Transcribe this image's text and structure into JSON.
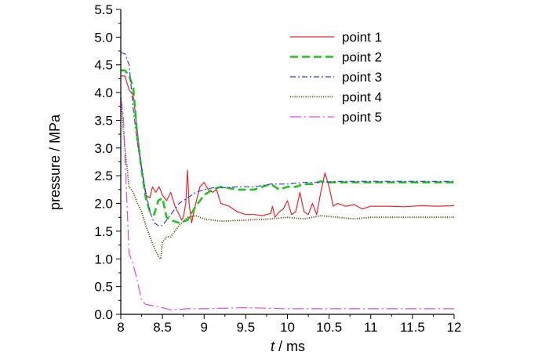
{
  "chart_data": {
    "type": "line",
    "title": "",
    "xlabel_italic": "t",
    "xlabel_rest": " / ms",
    "ylabel": "pressure / MPa",
    "xlim": [
      8,
      12
    ],
    "ylim": [
      0,
      5.5
    ],
    "xticks": [
      8,
      8.5,
      9,
      9.5,
      10,
      10.5,
      11,
      11.5,
      12
    ],
    "xtick_labels": [
      "8",
      "8.5",
      "9",
      "9.5",
      "10",
      "10.5",
      "11",
      "11.5",
      "12"
    ],
    "yticks": [
      0,
      0.5,
      1,
      1.5,
      2,
      2.5,
      3,
      3.5,
      4,
      4.5,
      5,
      5.5
    ],
    "ytick_labels": [
      "0.0",
      "0.5",
      "1.0",
      "1.5",
      "2.0",
      "2.5",
      "3.0",
      "3.5",
      "4.0",
      "4.5",
      "5.0",
      "5.5"
    ],
    "grid": false,
    "legend_position": "top-right",
    "series": [
      {
        "name": "point 1",
        "color": "#e8262a",
        "dash": "solid",
        "x": [
          8.0,
          8.05,
          8.1,
          8.15,
          8.2,
          8.25,
          8.3,
          8.35,
          8.38,
          8.42,
          8.46,
          8.5,
          8.55,
          8.6,
          8.65,
          8.7,
          8.73,
          8.75,
          8.78,
          8.8,
          8.82,
          8.85,
          8.9,
          8.95,
          9.0,
          9.05,
          9.1,
          9.15,
          9.2,
          9.3,
          9.4,
          9.5,
          9.6,
          9.7,
          9.8,
          9.82,
          9.85,
          9.9,
          9.95,
          10.0,
          10.05,
          10.1,
          10.15,
          10.2,
          10.25,
          10.3,
          10.35,
          10.4,
          10.45,
          10.5,
          10.55,
          10.6,
          10.7,
          10.8,
          10.9,
          11.0,
          11.2,
          11.4,
          11.6,
          11.8,
          12.0
        ],
        "y": [
          4.3,
          4.3,
          4.05,
          3.95,
          3.3,
          2.6,
          2.15,
          2.1,
          2.3,
          2.2,
          2.3,
          2.15,
          2.05,
          2.2,
          1.95,
          1.8,
          1.7,
          1.75,
          2.0,
          2.6,
          2.0,
          1.65,
          2.0,
          2.3,
          2.38,
          2.25,
          2.2,
          2.25,
          2.0,
          1.95,
          1.85,
          1.8,
          1.8,
          1.78,
          1.82,
          1.95,
          1.75,
          1.85,
          1.9,
          2.05,
          1.8,
          1.85,
          2.2,
          1.85,
          1.8,
          2.0,
          1.8,
          2.2,
          2.55,
          2.3,
          1.95,
          2.0,
          1.95,
          1.98,
          1.9,
          1.95,
          1.95,
          1.94,
          1.96,
          1.95,
          1.96
        ]
      },
      {
        "name": "point 2",
        "color": "#22c31e",
        "dash": "long-dash",
        "x": [
          8.0,
          8.05,
          8.1,
          8.15,
          8.2,
          8.25,
          8.3,
          8.35,
          8.4,
          8.45,
          8.5,
          8.55,
          8.6,
          8.7,
          8.8,
          8.9,
          9.0,
          9.1,
          9.2,
          9.4,
          9.6,
          9.7,
          9.8,
          9.9,
          10.0,
          10.1,
          10.2,
          10.3,
          10.4,
          10.5,
          10.6,
          10.8,
          11.0,
          11.5,
          12.0
        ],
        "y": [
          4.4,
          4.4,
          4.3,
          4.1,
          3.2,
          2.6,
          2.1,
          1.85,
          1.8,
          2.05,
          2.1,
          1.75,
          1.7,
          1.65,
          1.7,
          1.95,
          2.15,
          2.25,
          2.3,
          2.25,
          2.25,
          2.3,
          2.35,
          2.25,
          2.3,
          2.3,
          2.35,
          2.35,
          2.4,
          2.38,
          2.38,
          2.38,
          2.38,
          2.38,
          2.38
        ]
      },
      {
        "name": "point 3",
        "color": "#2f3ed6",
        "dash": "dash-dot",
        "x": [
          8.0,
          8.05,
          8.1,
          8.15,
          8.2,
          8.25,
          8.3,
          8.35,
          8.4,
          8.45,
          8.5,
          8.55,
          8.6,
          8.65,
          8.7,
          8.8,
          8.9,
          9.0,
          9.1,
          9.2,
          9.4,
          9.6,
          9.8,
          10.0,
          10.2,
          10.4,
          10.6,
          10.8,
          11.0,
          11.5,
          12.0
        ],
        "y": [
          4.72,
          4.7,
          4.5,
          3.7,
          3.1,
          2.65,
          2.2,
          1.85,
          1.65,
          1.6,
          1.6,
          1.7,
          1.8,
          1.9,
          2.0,
          2.1,
          2.2,
          2.25,
          2.28,
          2.28,
          2.3,
          2.3,
          2.35,
          2.35,
          2.38,
          2.38,
          2.4,
          2.4,
          2.4,
          2.4,
          2.4
        ]
      },
      {
        "name": "point 4",
        "color": "#5a5a1a",
        "dash": "dotted",
        "x": [
          8.0,
          8.05,
          8.1,
          8.15,
          8.2,
          8.25,
          8.3,
          8.35,
          8.4,
          8.45,
          8.48,
          8.5,
          8.55,
          8.6,
          8.65,
          8.7,
          8.8,
          8.9,
          9.0,
          9.2,
          9.5,
          9.8,
          10.0,
          10.2,
          10.4,
          10.6,
          10.8,
          11.0,
          11.5,
          12.0
        ],
        "y": [
          3.9,
          3.0,
          2.3,
          2.2,
          2.0,
          1.85,
          1.6,
          1.4,
          1.2,
          1.05,
          1.0,
          1.3,
          1.4,
          1.4,
          1.5,
          1.6,
          1.75,
          1.78,
          1.72,
          1.68,
          1.7,
          1.72,
          1.75,
          1.72,
          1.78,
          1.75,
          1.72,
          1.75,
          1.75,
          1.75
        ]
      },
      {
        "name": "point 5",
        "color": "#e646e6",
        "dash": "long-dash-dot",
        "x": [
          8.0,
          8.03,
          8.06,
          8.1,
          8.15,
          8.2,
          8.25,
          8.3,
          8.4,
          8.5,
          8.55,
          8.6,
          8.8,
          9.0,
          9.5,
          10.0,
          10.5,
          11.0,
          11.5,
          12.0
        ],
        "y": [
          3.9,
          3.6,
          2.5,
          1.1,
          0.9,
          0.6,
          0.25,
          0.18,
          0.15,
          0.12,
          0.1,
          0.08,
          0.1,
          0.1,
          0.12,
          0.1,
          0.1,
          0.1,
          0.1,
          0.1
        ]
      }
    ]
  }
}
